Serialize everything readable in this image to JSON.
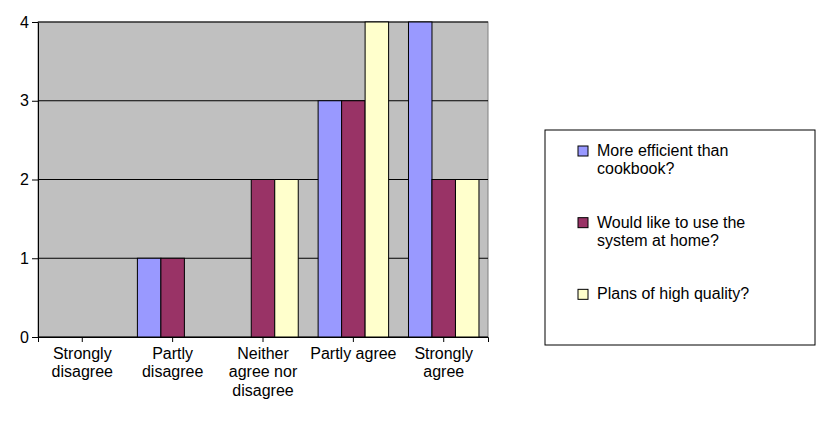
{
  "chart_data": {
    "type": "bar",
    "categories": [
      "Strongly disagree",
      "Partly disagree",
      "Neither agree nor disagree",
      "Partly agree",
      "Strongly agree"
    ],
    "series": [
      {
        "name": "More efficient than cookbook?",
        "color": "#9999ff",
        "values": [
          0,
          1,
          0,
          3,
          4
        ]
      },
      {
        "name": "Would like to use the system at home?",
        "color": "#993366",
        "values": [
          0,
          1,
          2,
          3,
          2
        ]
      },
      {
        "name": "Plans of high quality?",
        "color": "#ffffcc",
        "values": [
          0,
          0,
          2,
          4,
          2
        ]
      }
    ],
    "ylim": [
      0,
      4
    ],
    "yticks": [
      0,
      1,
      2,
      3,
      4
    ],
    "grid": true,
    "legend": "right"
  }
}
